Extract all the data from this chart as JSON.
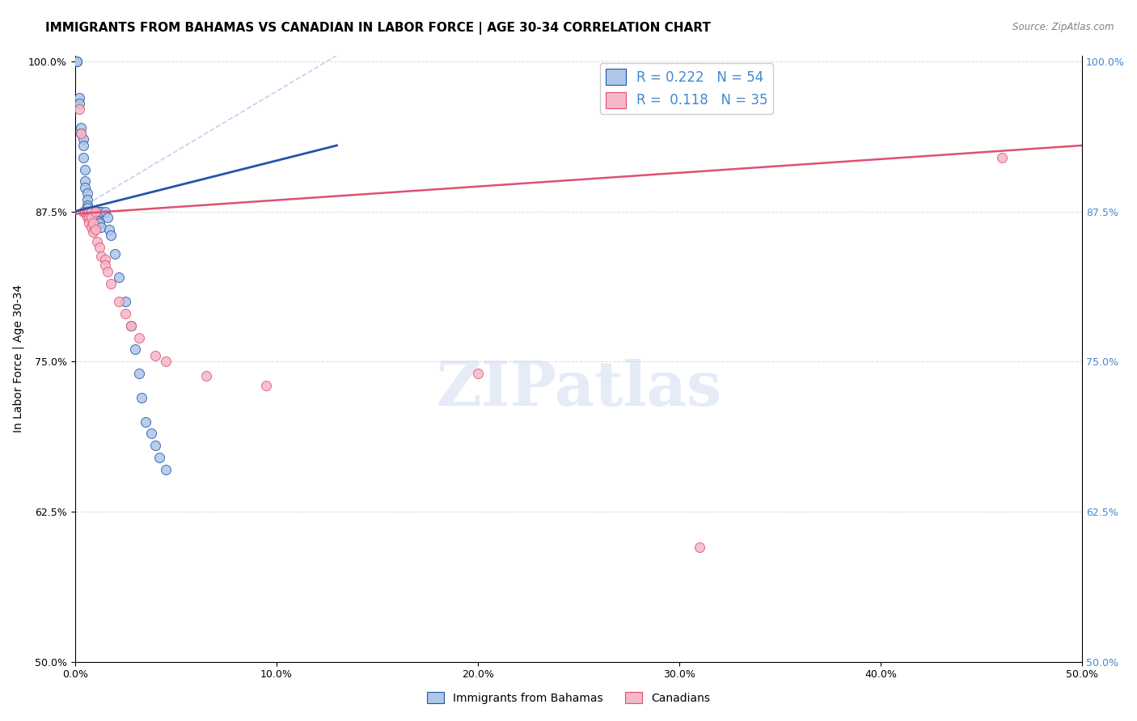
{
  "title": "IMMIGRANTS FROM BAHAMAS VS CANADIAN IN LABOR FORCE | AGE 30-34 CORRELATION CHART",
  "source": "Source: ZipAtlas.com",
  "ylabel": "In Labor Force | Age 30-34",
  "xlabel": "",
  "xlim": [
    0.0,
    0.5
  ],
  "ylim": [
    0.5,
    1.005
  ],
  "yticks": [
    0.5,
    0.625,
    0.75,
    0.875,
    1.0
  ],
  "ytick_labels": [
    "50.0%",
    "62.5%",
    "75.0%",
    "87.5%",
    "100.0%"
  ],
  "xticks": [
    0.0,
    0.1,
    0.2,
    0.3,
    0.4,
    0.5
  ],
  "xtick_labels": [
    "0.0%",
    "10.0%",
    "20.0%",
    "30.0%",
    "40.0%",
    "50.0%"
  ],
  "legend_r_blue": "R = 0.222",
  "legend_n_blue": "N = 54",
  "legend_r_pink": "R =  0.118",
  "legend_n_pink": "N = 35",
  "blue_scatter_x": [
    0.001,
    0.001,
    0.002,
    0.002,
    0.003,
    0.003,
    0.004,
    0.004,
    0.004,
    0.005,
    0.005,
    0.005,
    0.006,
    0.006,
    0.006,
    0.006,
    0.006,
    0.007,
    0.007,
    0.007,
    0.007,
    0.007,
    0.008,
    0.008,
    0.008,
    0.008,
    0.009,
    0.009,
    0.009,
    0.01,
    0.01,
    0.01,
    0.011,
    0.011,
    0.012,
    0.012,
    0.013,
    0.013,
    0.015,
    0.016,
    0.017,
    0.018,
    0.02,
    0.022,
    0.025,
    0.028,
    0.03,
    0.032,
    0.033,
    0.035,
    0.038,
    0.04,
    0.042,
    0.045
  ],
  "blue_scatter_y": [
    1.0,
    1.0,
    0.97,
    0.965,
    0.945,
    0.94,
    0.935,
    0.93,
    0.92,
    0.91,
    0.9,
    0.895,
    0.89,
    0.885,
    0.88,
    0.878,
    0.875,
    0.875,
    0.875,
    0.875,
    0.873,
    0.87,
    0.875,
    0.875,
    0.872,
    0.868,
    0.875,
    0.87,
    0.865,
    0.875,
    0.87,
    0.862,
    0.875,
    0.868,
    0.875,
    0.865,
    0.875,
    0.862,
    0.875,
    0.87,
    0.86,
    0.855,
    0.84,
    0.82,
    0.8,
    0.78,
    0.76,
    0.74,
    0.72,
    0.7,
    0.69,
    0.68,
    0.67,
    0.66
  ],
  "pink_scatter_x": [
    0.002,
    0.003,
    0.004,
    0.005,
    0.005,
    0.006,
    0.006,
    0.007,
    0.007,
    0.007,
    0.008,
    0.008,
    0.008,
    0.009,
    0.009,
    0.01,
    0.01,
    0.011,
    0.012,
    0.013,
    0.015,
    0.015,
    0.016,
    0.018,
    0.022,
    0.025,
    0.028,
    0.032,
    0.04,
    0.045,
    0.065,
    0.095,
    0.2,
    0.31,
    0.46
  ],
  "pink_scatter_y": [
    0.96,
    0.94,
    0.875,
    0.875,
    0.875,
    0.875,
    0.87,
    0.875,
    0.87,
    0.865,
    0.875,
    0.87,
    0.862,
    0.865,
    0.858,
    0.875,
    0.86,
    0.85,
    0.845,
    0.838,
    0.835,
    0.83,
    0.825,
    0.815,
    0.8,
    0.79,
    0.78,
    0.77,
    0.755,
    0.75,
    0.738,
    0.73,
    0.74,
    0.595,
    0.92
  ],
  "blue_color": "#aec6e8",
  "pink_color": "#f4b8c8",
  "blue_line_color": "#2255aa",
  "pink_line_color": "#e05070",
  "dashed_line_color": "#aac4e8",
  "watermark_text": "ZIPatlas",
  "background_color": "#ffffff",
  "grid_color": "#cccccc",
  "title_fontsize": 11,
  "axis_label_fontsize": 10,
  "tick_fontsize": 9,
  "right_ytick_color": "#4488cc"
}
